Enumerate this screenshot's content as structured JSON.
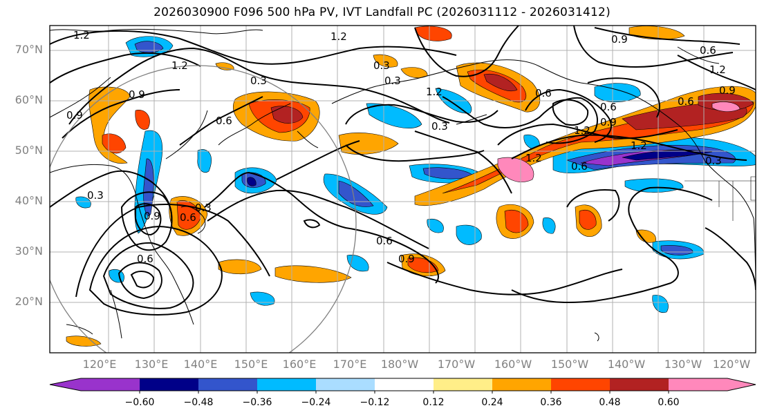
{
  "title": "2026030900 F096 500 hPa PV, IVT Landfall PC (2026031112 - 2026031412)",
  "map": {
    "lat_labels": [
      "70°N",
      "60°N",
      "50°N",
      "40°N",
      "30°N",
      "20°N"
    ],
    "lon_labels": [
      "120°E",
      "130°E",
      "140°E",
      "150°E",
      "160°E",
      "170°E",
      "180°W",
      "170°W",
      "160°W",
      "150°W",
      "140°W",
      "130°W",
      "120°W"
    ],
    "contour_labels": [
      "1.2",
      "1.2",
      "1.2",
      "0.9",
      "0.9",
      "0.3",
      "0.6",
      "0.3",
      "0.3",
      "0.9",
      "0.6",
      "0.6",
      "0.9",
      "1.2",
      "0.6",
      "0.9",
      "0.6",
      "1.2",
      "1.2",
      "0.9",
      "1.2",
      "0.6",
      "0.3",
      "0.6",
      "1.2",
      "0.9",
      "0.6",
      "0.3",
      "0.3",
      "0.3",
      "0.6"
    ]
  },
  "colorbar": {
    "colors": [
      "#9933cc",
      "#000088",
      "#3355cc",
      "#00bbff",
      "#aaddff",
      "#ffffff",
      "#ffee88",
      "#ffa500",
      "#ff4500",
      "#b22222",
      "#ff88bb"
    ],
    "ticks": [
      "−0.60",
      "−0.48",
      "−0.36",
      "−0.24",
      "−0.12",
      "0.12",
      "0.24",
      "0.36",
      "0.48",
      "0.60"
    ]
  }
}
